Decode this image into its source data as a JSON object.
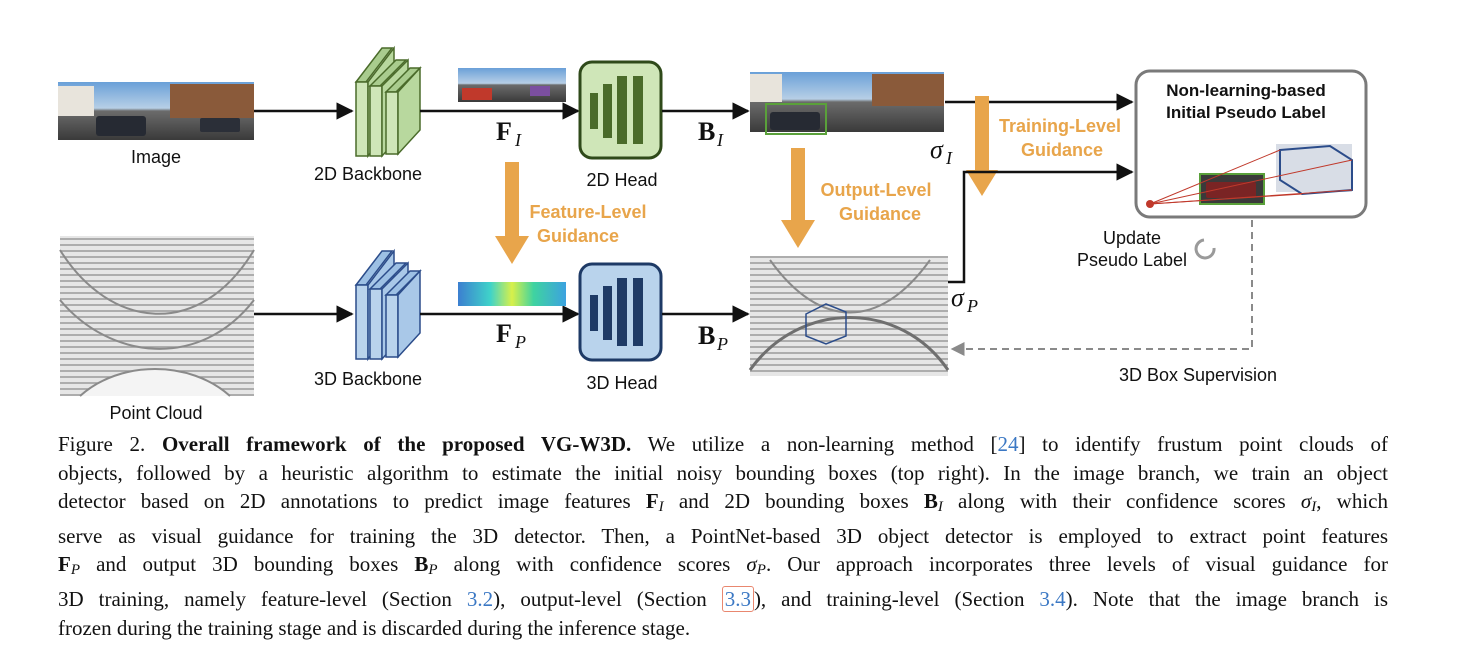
{
  "figure": {
    "image_label": "Image",
    "point_cloud_label": "Point Cloud",
    "backbone_2d": "2D Backbone",
    "backbone_3d": "3D Backbone",
    "head_2d": "2D Head",
    "head_3d": "3D Head",
    "feature_level": [
      "Feature-Level",
      "Guidance"
    ],
    "output_level": [
      "Output-Level",
      "Guidance"
    ],
    "training_level": [
      "Training-Level",
      "Guidance"
    ],
    "pseudo_label_title": [
      "Non-learning-based",
      "Initial Pseudo Label"
    ],
    "update_label": [
      "Update",
      "Pseudo Label"
    ],
    "supervision_label": "3D Box Supervision",
    "math": {
      "F_I": {
        "base": "F",
        "sub": "I"
      },
      "F_P": {
        "base": "F",
        "sub": "P"
      },
      "B_I": {
        "base": "B",
        "sub": "I"
      },
      "B_P": {
        "base": "B",
        "sub": "P"
      },
      "sigma_I": {
        "base": "σ",
        "sub": "I"
      },
      "sigma_P": {
        "base": "σ",
        "sub": "P"
      }
    },
    "colors": {
      "green_fill": "#cfe6b8",
      "green_dark": "#4a6b2a",
      "blue_fill": "#b9d3ec",
      "blue_dark": "#1e3a66",
      "guidance": "#e8a54b"
    }
  },
  "caption": {
    "figure_no": "Figure 2.",
    "title": "Overall framework of the proposed VG-W3D.",
    "l1a": "We utilize a non-learning method [",
    "ref24": "24",
    "l1b": "] to identify frustum point clouds of",
    "l2": "objects, followed by a heuristic algorithm to estimate the initial noisy bounding boxes (top right). In the image branch, we train an object",
    "l3a": "detector based on 2D annotations to predict image features",
    "l3b": "and 2D bounding boxes",
    "l3c": "along with their confidence scores",
    "l3d": ", which",
    "l4": "serve as visual guidance for training the 3D detector.  Then, a PointNet-based 3D object detector is employed to extract point features",
    "l5a": "and output 3D bounding boxes",
    "l5b": "along with confidence scores",
    "l5c": ".  Our approach incorporates three levels of visual guidance for",
    "l6a": "3D training, namely feature-level (Section",
    "ref32": "3.2",
    "l6b": "), output-level (Section",
    "ref33": "3.3",
    "l6c": "), and training-level (Section",
    "ref34": "3.4",
    "l6d": "). Note that the image branch is",
    "l7": "frozen during the training stage and is discarded during the inference stage.",
    "sym_F": "F",
    "sym_B": "B",
    "sym_sigma": "σ",
    "sub_I": "I",
    "sub_P": "P"
  }
}
